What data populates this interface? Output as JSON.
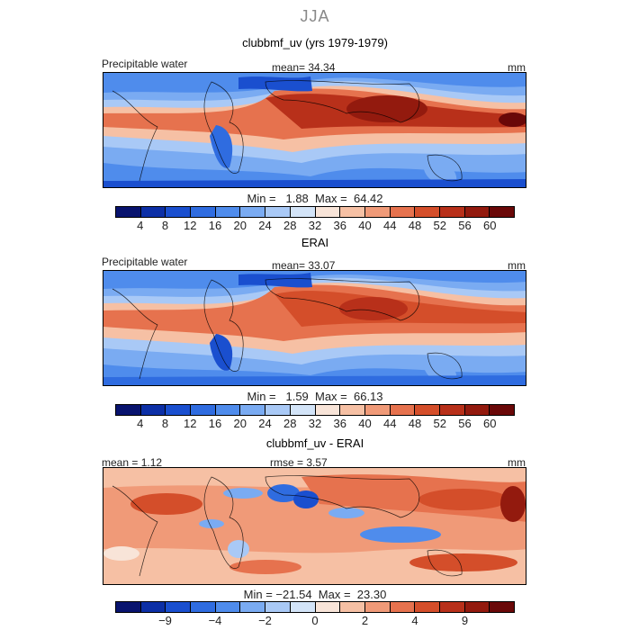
{
  "season": "JJA",
  "panels": [
    {
      "title": "clubbmf_uv (yrs 1979-1979)",
      "left_label": "Precipitable water",
      "center_label": "mean=  34.34",
      "right_label": "mm",
      "minmax": "Min =   1.88  Max =  64.42"
    },
    {
      "title": "ERAI",
      "left_label": "Precipitable water",
      "center_label": "mean=  33.07",
      "right_label": "mm",
      "minmax": "Min =   1.59  Max =  66.13"
    },
    {
      "title": "clubbmf_uv - ERAI",
      "left_label": "mean =  1.12",
      "center_label": "rmse =   3.57",
      "right_label": "mm",
      "minmax": "Min = −21.54  Max =  23.30"
    }
  ],
  "colorbars": {
    "full_field": {
      "colors": [
        "#08136e",
        "#0c2fa6",
        "#1a4fcf",
        "#2f6ce0",
        "#4f8cec",
        "#7aabf2",
        "#a9c9f6",
        "#d3e4f8",
        "#f8e4d8",
        "#f6c0a4",
        "#f09a78",
        "#e6724e",
        "#d44e2a",
        "#b8301a",
        "#931a0e",
        "#6a0808"
      ],
      "ticks": [
        "4",
        "8",
        "12",
        "16",
        "20",
        "24",
        "28",
        "32",
        "36",
        "40",
        "44",
        "48",
        "52",
        "56",
        "60"
      ]
    },
    "difference": {
      "colors": [
        "#08136e",
        "#0c2fa6",
        "#1a4fcf",
        "#2f6ce0",
        "#4f8cec",
        "#7aabf2",
        "#a9c9f6",
        "#d3e4f8",
        "#f8e4d8",
        "#f6c0a4",
        "#f09a78",
        "#e6724e",
        "#d44e2a",
        "#b8301a",
        "#931a0e",
        "#6a0808"
      ],
      "ticks": [
        "−9",
        "−4",
        "−2",
        "0",
        "2",
        "4",
        "9"
      ]
    }
  }
}
